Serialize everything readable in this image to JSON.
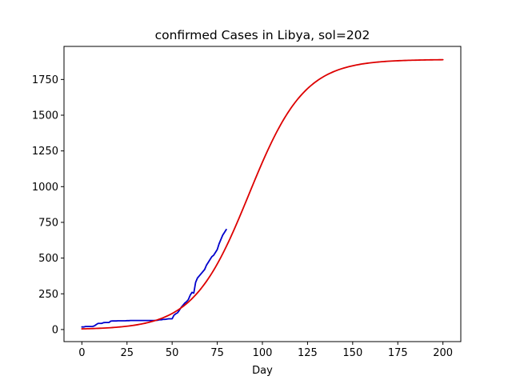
{
  "chart_data": {
    "type": "line",
    "title": "confirmed Cases in Libya, sol=202",
    "xlabel": "Day",
    "ylabel": "",
    "xlim": [
      -9.9,
      209.9
    ],
    "ylim": [
      -84.5,
      1981.5
    ],
    "x_ticks": [
      0,
      25,
      50,
      75,
      100,
      125,
      150,
      175,
      200
    ],
    "y_ticks": [
      0,
      250,
      500,
      750,
      1000,
      1250,
      1500,
      1750
    ],
    "grid": false,
    "legend": "none",
    "series": [
      {
        "color": "#0000cc",
        "x": [
          0,
          1,
          2,
          3,
          4,
          5,
          6,
          7,
          8,
          9,
          10,
          11,
          12,
          13,
          14,
          15,
          16,
          17,
          18,
          19,
          20,
          21,
          22,
          23,
          24,
          25,
          26,
          27,
          28,
          29,
          30,
          31,
          32,
          33,
          34,
          35,
          36,
          37,
          38,
          39,
          40,
          41,
          42,
          43,
          44,
          45,
          46,
          47,
          48,
          49,
          50,
          51,
          52,
          53,
          54,
          55,
          56,
          57,
          58,
          59,
          60,
          61,
          62,
          63,
          64,
          65,
          66,
          67,
          68,
          69,
          70,
          71,
          72,
          73,
          74,
          75,
          76,
          77,
          78,
          79,
          80
        ],
        "y": [
          18,
          18,
          21,
          21,
          21,
          21,
          22,
          26,
          35,
          43,
          43,
          43,
          48,
          49,
          49,
          49,
          59,
          60,
          60,
          60,
          61,
          61,
          61,
          61,
          61,
          62,
          62,
          63,
          63,
          63,
          63,
          63,
          63,
          63,
          63,
          63,
          63,
          63,
          63,
          63,
          63,
          64,
          65,
          68,
          68,
          71,
          71,
          73,
          75,
          75,
          75,
          100,
          110,
          117,
          135,
          155,
          170,
          185,
          195,
          210,
          240,
          260,
          255,
          330,
          360,
          375,
          390,
          405,
          420,
          450,
          470,
          490,
          510,
          520,
          540,
          560,
          600,
          630,
          660,
          680,
          700
        ]
      },
      {
        "color": "#dd0000",
        "logistic": {
          "K": 1890,
          "midpoint": 92.5,
          "rate": 0.065,
          "x_start": 0,
          "x_end": 200
        }
      }
    ]
  }
}
